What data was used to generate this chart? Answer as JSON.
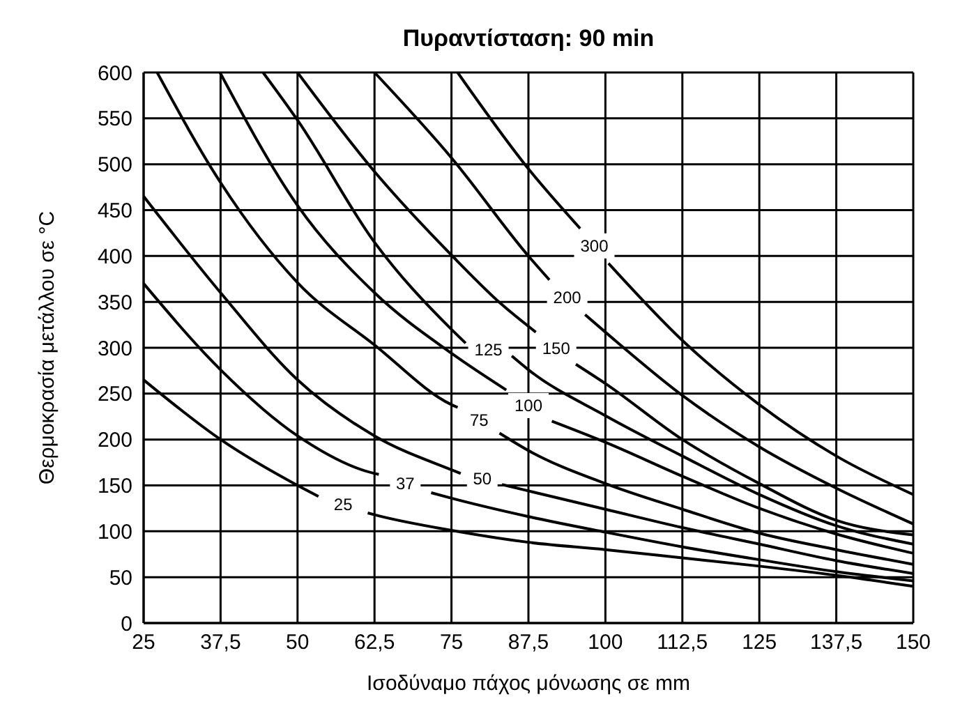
{
  "chart_data": {
    "type": "line",
    "title": "Πυραντίσταση: 90 min",
    "xlabel": "Ισοδύναμο πάχος μόνωσης σε mm",
    "ylabel": "Θερμοκρασία μετάλλου σε °C",
    "xlim": [
      25,
      150
    ],
    "xticks": [
      25,
      {
        "value": 37.5,
        "label": "37,5"
      },
      50,
      {
        "value": 62.5,
        "label": "62,5"
      },
      75,
      {
        "value": 87.5,
        "label": "87,5"
      },
      100,
      {
        "value": 112.5,
        "label": "112,5"
      },
      125,
      {
        "value": 137.5,
        "label": "137,5"
      },
      150
    ],
    "ylim": [
      0,
      600
    ],
    "yticks": [
      0,
      50,
      100,
      150,
      200,
      250,
      300,
      350,
      400,
      450,
      500,
      550,
      600
    ],
    "grid": true,
    "marker": "none",
    "line_style": "solid",
    "series": [
      {
        "name": "25",
        "color": "#000000",
        "x": [
          25,
          37.5,
          50,
          53.4,
          57.4,
          61.4,
          62.5,
          75,
          87.5,
          100,
          112.5,
          125,
          137.5,
          150
        ],
        "values": [
          265,
          200,
          150,
          138,
          null,
          120,
          118,
          101,
          88,
          80,
          71,
          62,
          52,
          40
        ]
      },
      {
        "name": "37",
        "color": "#000000",
        "x": [
          25,
          37.5,
          50,
          62.5,
          63.2,
          67.5,
          71.7,
          75,
          87.5,
          100,
          112.5,
          125,
          137.5,
          150
        ],
        "values": [
          370,
          276,
          204,
          163,
          162,
          null,
          142,
          136,
          116,
          99,
          83,
          69,
          56,
          46
        ]
      },
      {
        "name": "50",
        "color": "#000000",
        "x": [
          25,
          37.5,
          50,
          62.5,
          75,
          76.5,
          80,
          83.2,
          87.5,
          100,
          112.5,
          125,
          137.5,
          150
        ],
        "values": [
          465,
          360,
          265,
          204,
          167,
          163,
          null,
          151,
          144,
          124,
          104,
          86,
          68,
          54
        ]
      },
      {
        "name": "75",
        "color": "#000000",
        "x": [
          27.2,
          37.5,
          50,
          62.5,
          75,
          76,
          79.5,
          82.8,
          87.5,
          100,
          112.5,
          125,
          137.5,
          150
        ],
        "values": [
          600,
          480,
          371,
          303,
          238,
          235,
          null,
          207,
          188,
          152,
          124,
          98,
          80,
          64
        ]
      },
      {
        "name": "100",
        "color": "#000000",
        "x": [
          37.4,
          50,
          62.5,
          75,
          83.9,
          87.5,
          91.3,
          100,
          112.5,
          125,
          137.5,
          150
        ],
        "values": [
          600,
          455,
          360,
          294,
          254,
          null,
          220,
          197,
          160,
          125,
          97,
          76
        ]
      },
      {
        "name": "125",
        "color": "#000000",
        "x": [
          44.4,
          50,
          62.5,
          75,
          77.3,
          81,
          84.8,
          87.5,
          100,
          112.5,
          125,
          137.5,
          150
        ],
        "values": [
          600,
          548,
          415,
          320,
          305,
          null,
          291,
          276,
          226,
          182,
          140,
          106,
          86
        ]
      },
      {
        "name": "150",
        "color": "#000000",
        "x": [
          50,
          62.5,
          75,
          83.2,
          88.7,
          92,
          95.2,
          100,
          112.5,
          125,
          137.5,
          150
        ],
        "values": [
          600,
          492,
          401,
          347,
          317,
          null,
          282,
          261,
          200,
          152,
          112,
          96
        ]
      },
      {
        "name": "200",
        "color": "#000000",
        "x": [
          62.5,
          75,
          87.5,
          90.9,
          93.8,
          96.7,
          100,
          112.5,
          125,
          137.5,
          150
        ],
        "values": [
          600,
          507,
          400,
          374,
          null,
          336,
          317,
          248,
          192,
          147,
          108
        ]
      },
      {
        "name": "300",
        "color": "#000000",
        "x": [
          76,
          87.5,
          95.9,
          98.2,
          100.5,
          112.5,
          125,
          137.5,
          150
        ],
        "values": [
          600,
          495,
          430,
          null,
          392,
          308,
          238,
          182,
          140
        ]
      }
    ]
  }
}
